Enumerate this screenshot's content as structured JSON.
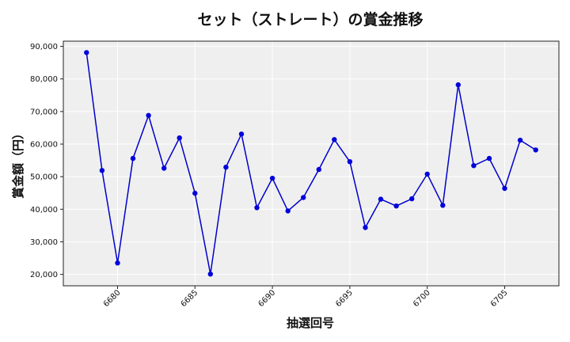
{
  "chart_data": {
    "type": "line",
    "title": "セット（ストレート）の賞金推移",
    "xlabel": "抽選回号",
    "ylabel": "賞金額（円）",
    "x": [
      6678,
      6679,
      6680,
      6681,
      6682,
      6683,
      6684,
      6685,
      6686,
      6687,
      6688,
      6689,
      6690,
      6691,
      6692,
      6693,
      6694,
      6695,
      6696,
      6697,
      6698,
      6699,
      6700,
      6701,
      6702,
      6703,
      6704,
      6705,
      6706,
      6707
    ],
    "series": [
      {
        "values": [
          88100,
          51900,
          23500,
          55600,
          68800,
          52600,
          61900,
          44900,
          20100,
          52900,
          63100,
          40500,
          49500,
          39500,
          43600,
          52200,
          61400,
          54600,
          34400,
          43100,
          41000,
          43200,
          50800,
          41200,
          78200,
          53400,
          55600,
          46400,
          61200,
          58200
        ]
      }
    ],
    "xlim": [
      6676.5,
      6708.5
    ],
    "ylim": [
      16500,
      91600
    ],
    "xticks": [
      6680,
      6685,
      6690,
      6695,
      6700,
      6705
    ],
    "xtick_labels": [
      "6680",
      "6685",
      "6690",
      "6695",
      "6700",
      "6705"
    ],
    "yticks": [
      20000,
      30000,
      40000,
      50000,
      60000,
      70000,
      80000,
      90000
    ],
    "ytick_labels": [
      "20,000",
      "30,000",
      "40,000",
      "50,000",
      "60,000",
      "70,000",
      "80,000",
      "90,000"
    ],
    "grid": true,
    "line_color": "#0000cc",
    "marker_color": "#0000dd",
    "plot_background": "#efefef"
  }
}
